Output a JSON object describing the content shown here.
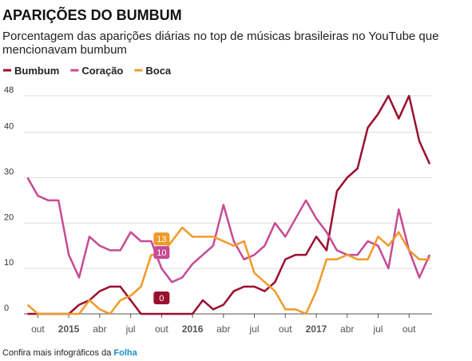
{
  "chart_data": {
    "type": "line",
    "title": "APARIÇÕES DO BUMBUM",
    "subtitle": [
      "Porcentagem das aparições diárias no top de músicas brasileiras no YouTube que",
      "mencionavam bumbum"
    ],
    "categories": [
      null,
      "out",
      null,
      null,
      "2015",
      null,
      null,
      "abr",
      null,
      null,
      "jul",
      null,
      null,
      "out",
      null,
      null,
      "2016",
      null,
      null,
      "abr",
      null,
      null,
      "jul",
      null,
      null,
      "out",
      null,
      null,
      "2017",
      null,
      null,
      "abr",
      null,
      null,
      "jul",
      null,
      null,
      "out",
      null,
      null
    ],
    "series": [
      {
        "name": "Bumbum",
        "color": "#9b0f2e",
        "values": [
          0,
          0,
          0,
          0,
          0,
          2,
          3,
          5,
          6,
          6,
          3,
          0,
          0,
          0,
          0,
          0,
          0,
          3,
          1,
          2,
          5,
          6,
          6,
          5,
          7,
          12,
          13,
          13,
          17,
          14,
          27,
          30,
          32,
          41,
          44,
          48,
          43,
          48,
          38,
          33
        ]
      },
      {
        "name": "Coração",
        "color": "#c74a94",
        "values": [
          30,
          26,
          25,
          25,
          13,
          8,
          17,
          15,
          14,
          14,
          18,
          16,
          16,
          10,
          7,
          8,
          11,
          13,
          15,
          24,
          16,
          12,
          13,
          15,
          20,
          17,
          21,
          25,
          21,
          18,
          14,
          13,
          13,
          16,
          15,
          10,
          23,
          14,
          8,
          13
        ]
      },
      {
        "name": "Boca",
        "color": "#f09a2a",
        "values": [
          2,
          0,
          0,
          0,
          0,
          0,
          3,
          1,
          0,
          3,
          4,
          6,
          13,
          13,
          16,
          19,
          17,
          17,
          17,
          16,
          15,
          16,
          9,
          7,
          5,
          1,
          1,
          0,
          5,
          12,
          12,
          13,
          12,
          12,
          17,
          15,
          18,
          14,
          12,
          12
        ]
      }
    ],
    "ylim": [
      0,
      48
    ],
    "yticks": [
      0,
      10,
      20,
      30,
      40,
      48
    ],
    "grid": true,
    "footer": {
      "text": "Confira mais infográficos da",
      "link": "Folha"
    }
  }
}
